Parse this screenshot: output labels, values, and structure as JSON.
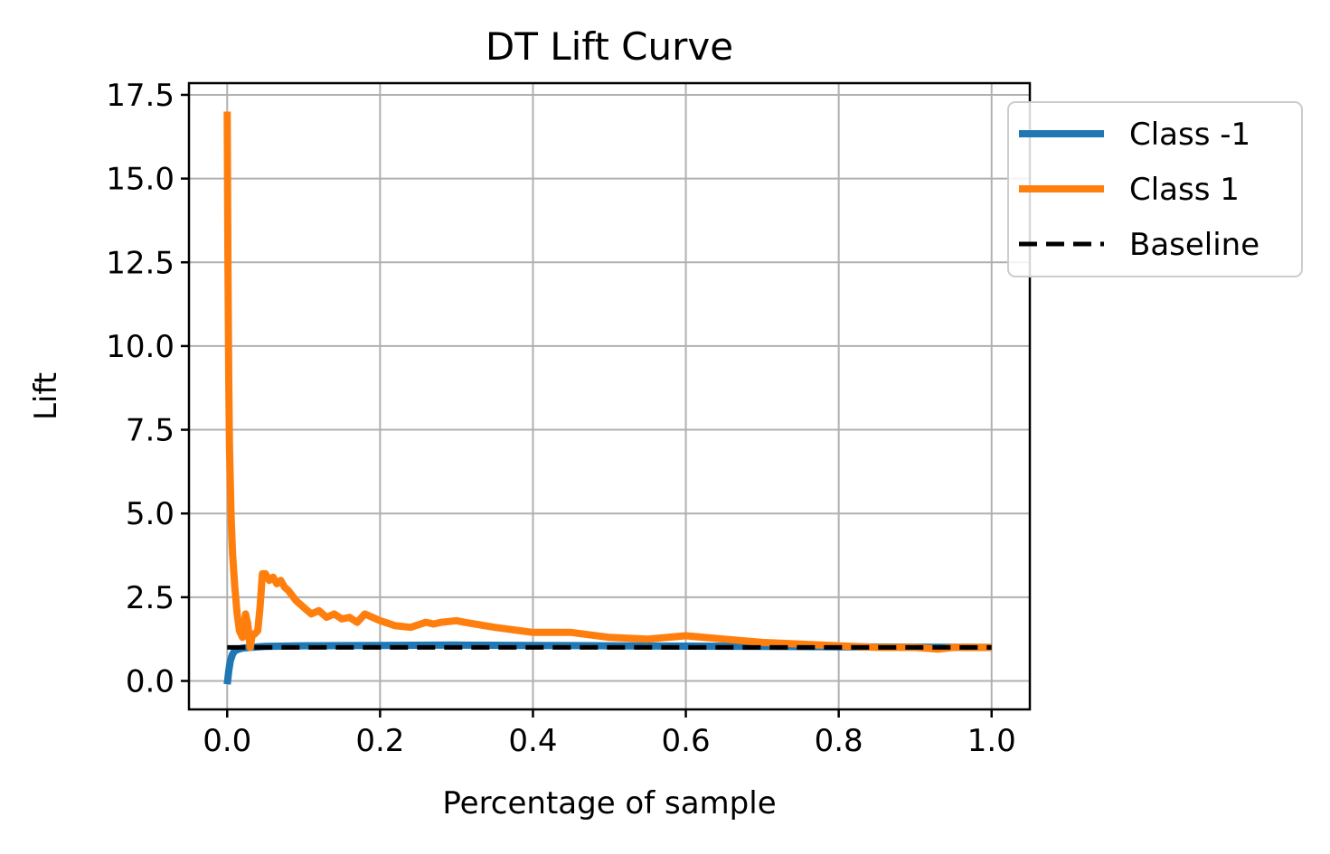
{
  "chart_data": {
    "type": "line",
    "title": "DT Lift Curve",
    "xlabel": "Percentage of sample",
    "ylabel": "Lift",
    "xlim": [
      -0.05,
      1.05
    ],
    "ylim": [
      -0.85,
      17.85
    ],
    "xticks": [
      0.0,
      0.2,
      0.4,
      0.6,
      0.8,
      1.0
    ],
    "xtick_labels": [
      "0.0",
      "0.2",
      "0.4",
      "0.6",
      "0.8",
      "1.0"
    ],
    "yticks": [
      0.0,
      2.5,
      5.0,
      7.5,
      10.0,
      12.5,
      15.0,
      17.5
    ],
    "ytick_labels": [
      "0.0",
      "2.5",
      "5.0",
      "7.5",
      "10.0",
      "12.5",
      "15.0",
      "17.5"
    ],
    "grid": true,
    "legend_position": "upper-right-outside",
    "series": [
      {
        "name": "Class -1",
        "color": "#1f77b4",
        "style": "solid",
        "x": [
          0.0,
          0.002,
          0.004,
          0.007,
          0.01,
          0.015,
          0.02,
          0.03,
          0.05,
          0.1,
          0.2,
          0.3,
          0.4,
          0.5,
          0.6,
          0.7,
          0.8,
          0.9,
          1.0
        ],
        "y": [
          -0.1,
          0.3,
          0.6,
          0.8,
          0.9,
          0.95,
          0.98,
          1.0,
          1.03,
          1.05,
          1.06,
          1.07,
          1.06,
          1.05,
          1.04,
          1.03,
          1.02,
          1.01,
          1.0
        ]
      },
      {
        "name": "Class 1",
        "color": "#ff7f0e",
        "style": "solid",
        "x": [
          0.0,
          0.001,
          0.002,
          0.003,
          0.005,
          0.007,
          0.01,
          0.013,
          0.016,
          0.02,
          0.024,
          0.027,
          0.03,
          0.033,
          0.036,
          0.04,
          0.043,
          0.046,
          0.05,
          0.055,
          0.06,
          0.065,
          0.07,
          0.075,
          0.08,
          0.09,
          0.1,
          0.11,
          0.12,
          0.13,
          0.14,
          0.15,
          0.16,
          0.17,
          0.18,
          0.2,
          0.22,
          0.24,
          0.26,
          0.27,
          0.28,
          0.3,
          0.31,
          0.35,
          0.4,
          0.45,
          0.5,
          0.55,
          0.6,
          0.65,
          0.7,
          0.75,
          0.8,
          0.85,
          0.9,
          0.93,
          0.95,
          1.0
        ],
        "y": [
          17.0,
          12.5,
          9.0,
          7.0,
          5.0,
          3.8,
          2.8,
          2.0,
          1.5,
          1.3,
          2.0,
          1.7,
          1.0,
          1.4,
          1.4,
          1.5,
          2.2,
          3.2,
          3.2,
          3.0,
          3.1,
          2.9,
          3.0,
          2.8,
          2.7,
          2.4,
          2.2,
          2.0,
          2.1,
          1.9,
          2.0,
          1.85,
          1.9,
          1.75,
          2.0,
          1.8,
          1.65,
          1.6,
          1.75,
          1.7,
          1.75,
          1.8,
          1.75,
          1.6,
          1.45,
          1.45,
          1.3,
          1.25,
          1.35,
          1.25,
          1.15,
          1.1,
          1.05,
          1.0,
          1.0,
          0.95,
          1.0,
          1.0
        ]
      },
      {
        "name": "Baseline",
        "color": "#000000",
        "style": "dashed",
        "x": [
          0.0,
          1.0
        ],
        "y": [
          1.0,
          1.0
        ]
      }
    ]
  }
}
